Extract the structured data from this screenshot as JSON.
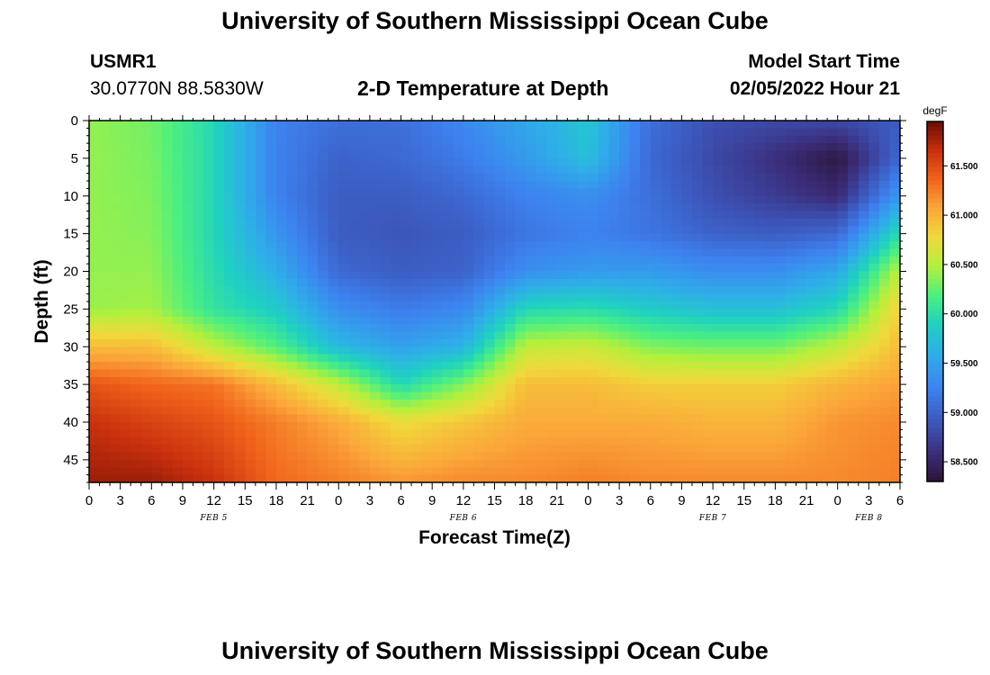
{
  "page": {
    "title": "University of Southern Mississippi Ocean Cube",
    "footer_title": "University of Southern Mississippi Ocean Cube",
    "station": "USMR1",
    "coords": "30.0770N  88.5830W",
    "subtitle": "2-D Temperature at Depth",
    "model_label": "Model Start Time",
    "model_time": "02/05/2022 Hour 21"
  },
  "chart_data": {
    "type": "heatmap",
    "title": "2-D Temperature at Depth",
    "xlabel": "Forecast Time(Z)",
    "ylabel": "Depth (ft)",
    "colorbar_label": "degF",
    "x_hours": [
      0,
      6,
      12,
      18,
      24,
      30,
      36,
      42,
      48,
      54,
      60,
      66,
      72,
      78
    ],
    "x_tick_labels": [
      "0",
      "3",
      "6",
      "9",
      "12",
      "15",
      "18",
      "21",
      "0",
      "3",
      "6",
      "9",
      "12",
      "15",
      "18",
      "21",
      "0",
      "3",
      "6",
      "9",
      "12",
      "15",
      "18",
      "21",
      "0",
      "3",
      "6"
    ],
    "date_labels": [
      {
        "label": "FEB 5",
        "hour": 12
      },
      {
        "label": "FEB 6",
        "hour": 36
      },
      {
        "label": "FEB 7",
        "hour": 60
      },
      {
        "label": "FEB 8",
        "hour": 75
      }
    ],
    "y_ticks": [
      0,
      5,
      10,
      15,
      20,
      25,
      30,
      35,
      40,
      45
    ],
    "ylim": [
      0,
      48
    ],
    "xlim": [
      0,
      78
    ],
    "color_range": [
      58.3,
      61.95
    ],
    "colorbar_ticks": [
      "58.500",
      "59.000",
      "59.500",
      "60.000",
      "60.500",
      "61.000",
      "61.500"
    ],
    "colorbar_tick_values": [
      58.5,
      59.0,
      59.5,
      60.0,
      60.5,
      61.0,
      61.5
    ],
    "colormap": [
      [
        0.0,
        "#2b1438"
      ],
      [
        0.08,
        "#3b2d7a"
      ],
      [
        0.16,
        "#3c54b8"
      ],
      [
        0.26,
        "#3d82f0"
      ],
      [
        0.36,
        "#2eafe8"
      ],
      [
        0.44,
        "#1fd2c0"
      ],
      [
        0.52,
        "#4ef07e"
      ],
      [
        0.6,
        "#b3f03c"
      ],
      [
        0.68,
        "#f0d93a"
      ],
      [
        0.76,
        "#fba73a"
      ],
      [
        0.84,
        "#f1641b"
      ],
      [
        0.92,
        "#c8300d"
      ],
      [
        1.0,
        "#6a0c05"
      ]
    ],
    "profile_depths": [
      0,
      5,
      10,
      15,
      20,
      25,
      30,
      35,
      40,
      48
    ],
    "profiles": [
      [
        60.4,
        60.4,
        60.4,
        60.4,
        60.4,
        60.42,
        60.95,
        61.45,
        61.65,
        61.8
      ],
      [
        60.3,
        60.32,
        60.34,
        60.36,
        60.4,
        60.45,
        60.95,
        61.35,
        61.55,
        61.8
      ],
      [
        59.95,
        59.95,
        59.95,
        59.95,
        59.98,
        60.05,
        60.55,
        61.3,
        61.45,
        61.65
      ],
      [
        59.25,
        59.25,
        59.25,
        59.4,
        59.6,
        59.85,
        60.2,
        60.95,
        61.25,
        61.35
      ],
      [
        59.1,
        59.0,
        58.95,
        58.95,
        59.05,
        59.35,
        59.7,
        60.55,
        61.05,
        61.25
      ],
      [
        59.1,
        59.05,
        58.95,
        58.9,
        58.95,
        59.2,
        59.5,
        59.95,
        60.75,
        61.15
      ],
      [
        59.3,
        59.2,
        59.05,
        58.95,
        59.0,
        59.3,
        59.65,
        60.35,
        60.9,
        61.2
      ],
      [
        59.55,
        59.45,
        59.25,
        59.15,
        59.35,
        59.95,
        60.55,
        60.95,
        61.05,
        61.2
      ],
      [
        59.8,
        59.75,
        59.35,
        59.25,
        59.45,
        60.0,
        60.6,
        60.95,
        61.05,
        61.25
      ],
      [
        59.1,
        59.05,
        59.1,
        59.15,
        59.45,
        59.85,
        60.35,
        60.85,
        61.05,
        61.2
      ],
      [
        58.85,
        58.8,
        58.85,
        59.0,
        59.35,
        59.75,
        60.3,
        60.85,
        61.0,
        61.2
      ],
      [
        58.8,
        58.6,
        58.7,
        58.95,
        59.35,
        59.75,
        60.3,
        60.85,
        61.0,
        61.2
      ],
      [
        58.8,
        58.35,
        58.55,
        59.05,
        59.55,
        59.95,
        60.55,
        61.0,
        61.15,
        61.2
      ],
      [
        58.95,
        59.05,
        59.45,
        60.0,
        60.55,
        60.85,
        60.95,
        61.1,
        61.2,
        61.25
      ]
    ]
  }
}
